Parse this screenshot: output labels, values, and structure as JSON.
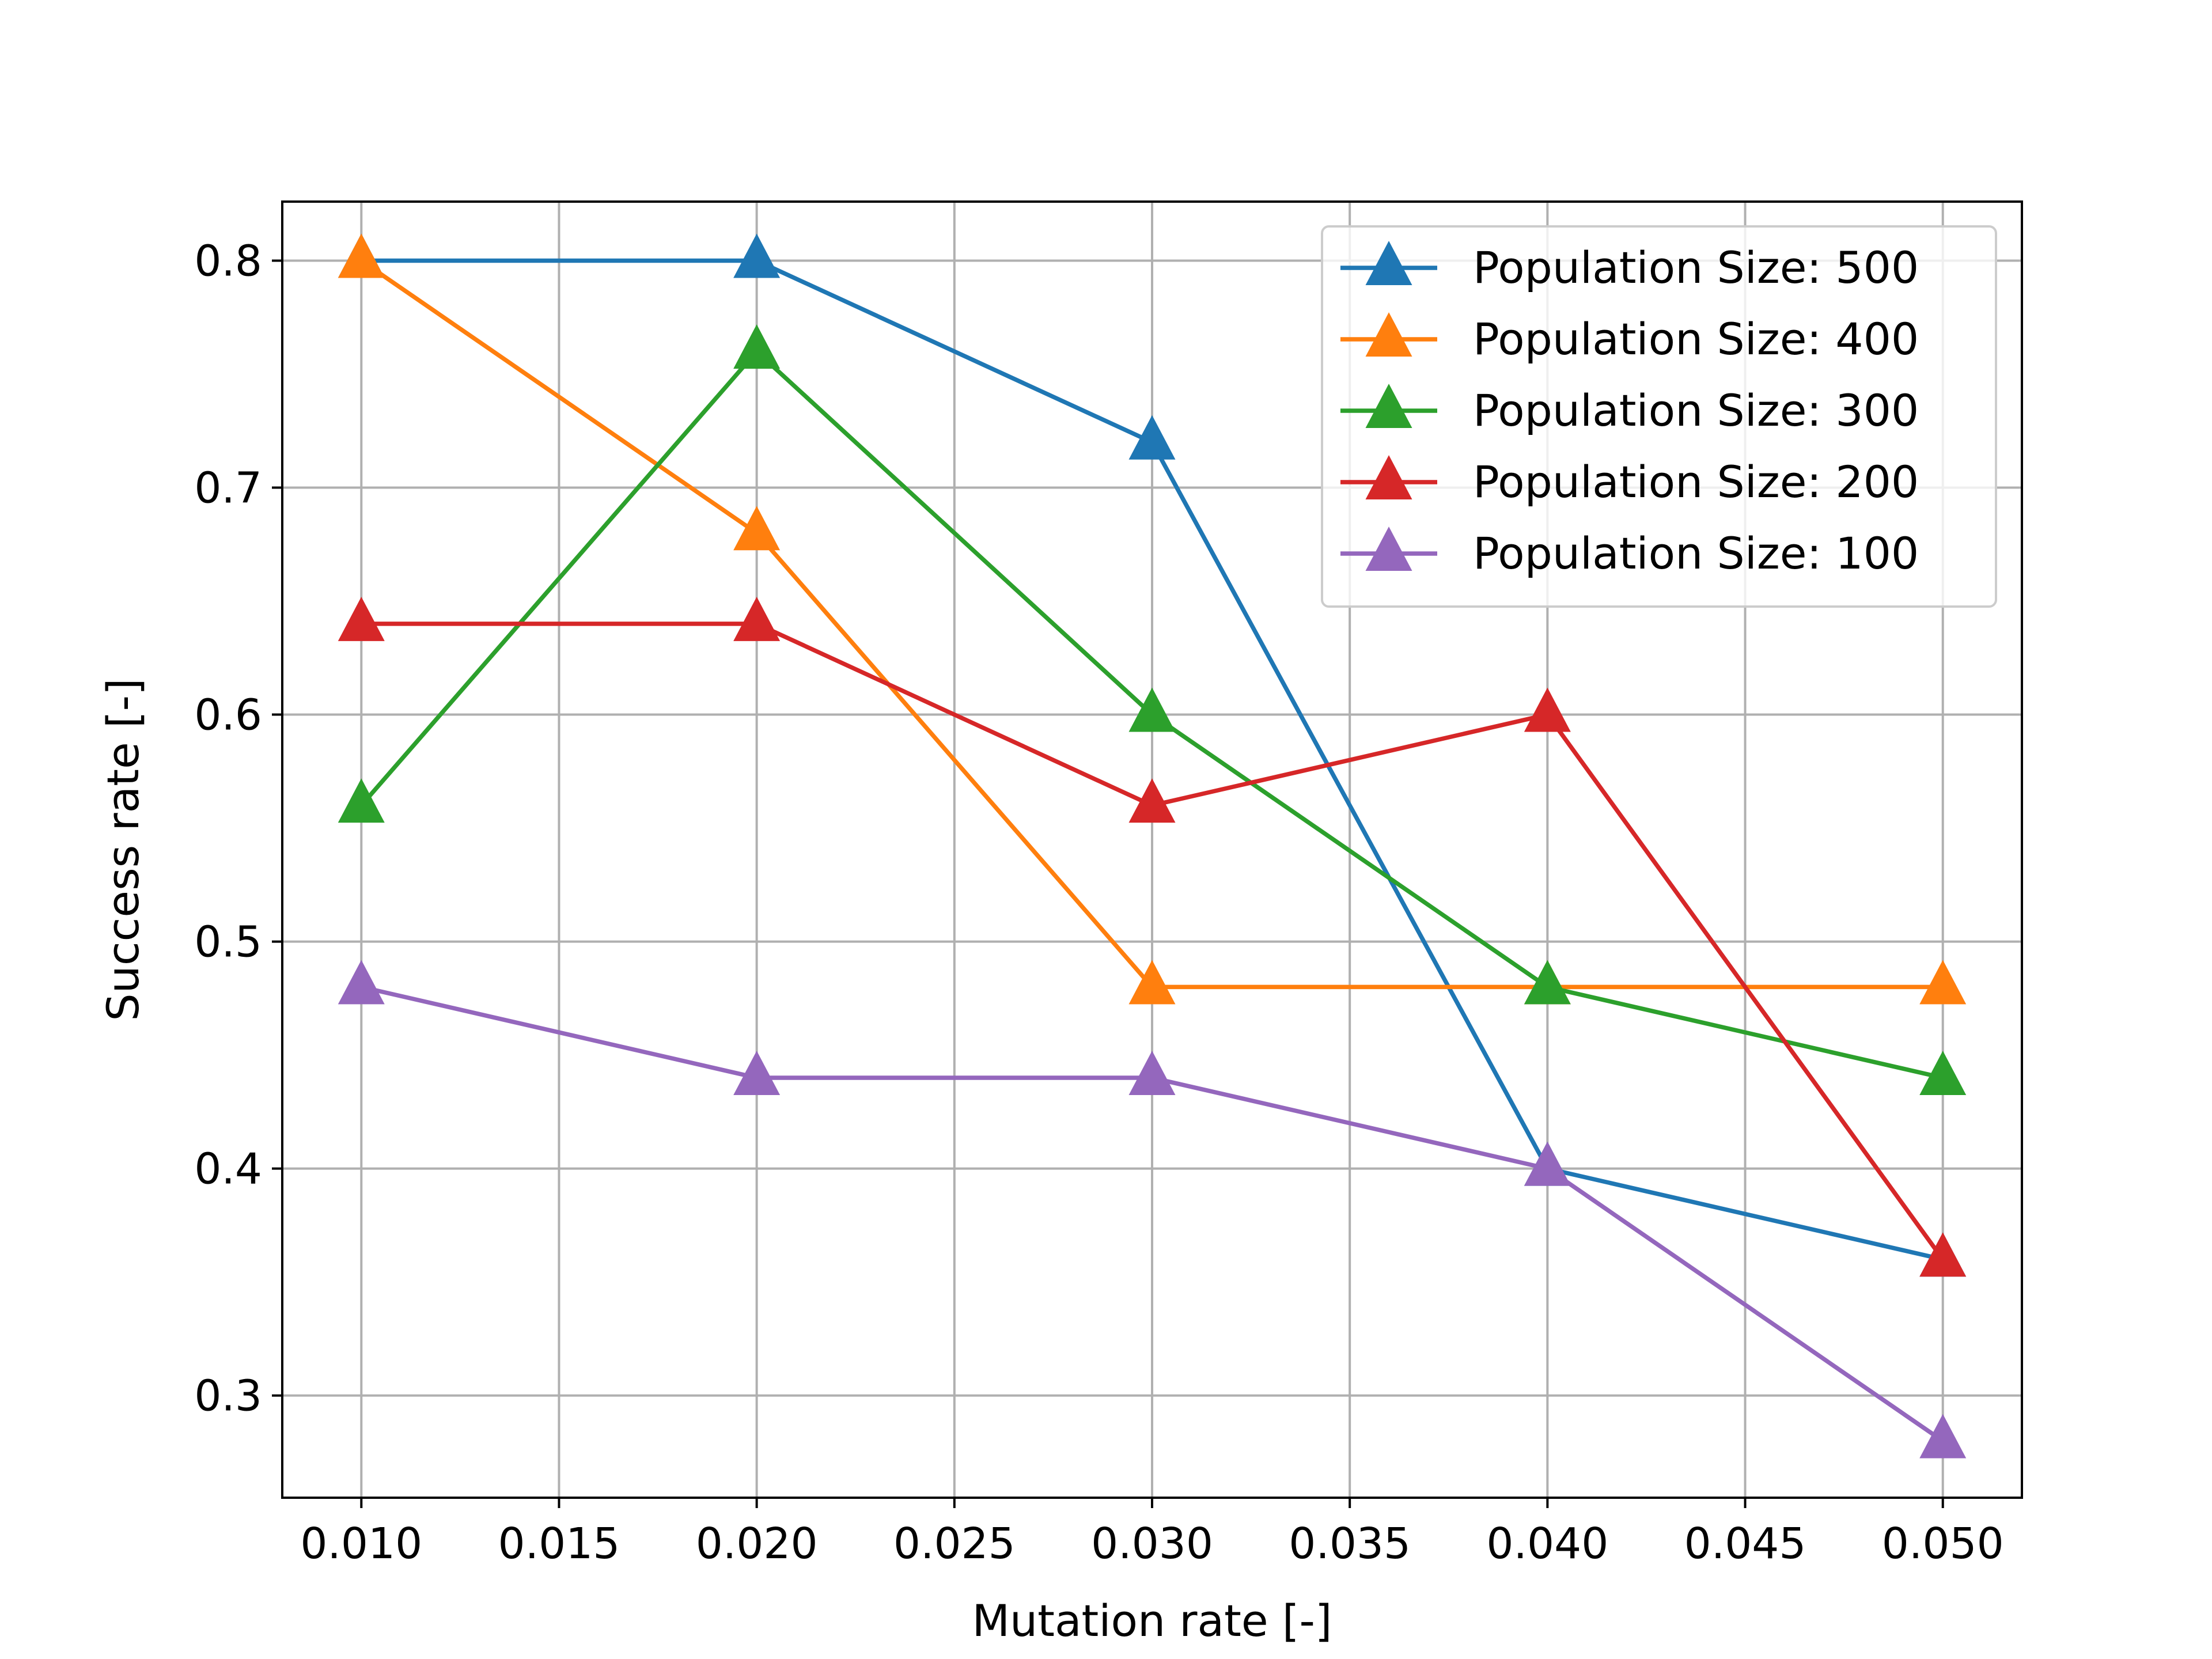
{
  "chart_data": {
    "type": "line",
    "title": "",
    "xlabel": "Mutation rate [-]",
    "ylabel": "Success rate [-]",
    "xlim": [
      0.008,
      0.052
    ],
    "ylim": [
      0.255,
      0.826
    ],
    "x_ticks": [
      "0.010",
      "0.015",
      "0.020",
      "0.025",
      "0.030",
      "0.035",
      "0.040",
      "0.045",
      "0.050"
    ],
    "y_ticks": [
      "0.3",
      "0.4",
      "0.5",
      "0.6",
      "0.7",
      "0.8"
    ],
    "grid": true,
    "legend_position": "top-right",
    "marker": "triangle-up",
    "x": [
      0.01,
      0.02,
      0.03,
      0.04,
      0.05
    ],
    "series": [
      {
        "name": "Population Size: 500",
        "color": "#1f77b4",
        "values": [
          0.8,
          0.8,
          0.72,
          0.4,
          0.36
        ]
      },
      {
        "name": "Population Size: 400",
        "color": "#ff7f0e",
        "values": [
          0.8,
          0.68,
          0.48,
          0.48,
          0.48
        ]
      },
      {
        "name": "Population Size: 300",
        "color": "#2ca02c",
        "values": [
          0.56,
          0.76,
          0.6,
          0.48,
          0.44
        ]
      },
      {
        "name": "Population Size: 200",
        "color": "#d62728",
        "values": [
          0.64,
          0.64,
          0.56,
          0.6,
          0.36
        ]
      },
      {
        "name": "Population Size: 100",
        "color": "#9467bd",
        "values": [
          0.48,
          0.44,
          0.44,
          0.4,
          0.28
        ]
      }
    ]
  }
}
